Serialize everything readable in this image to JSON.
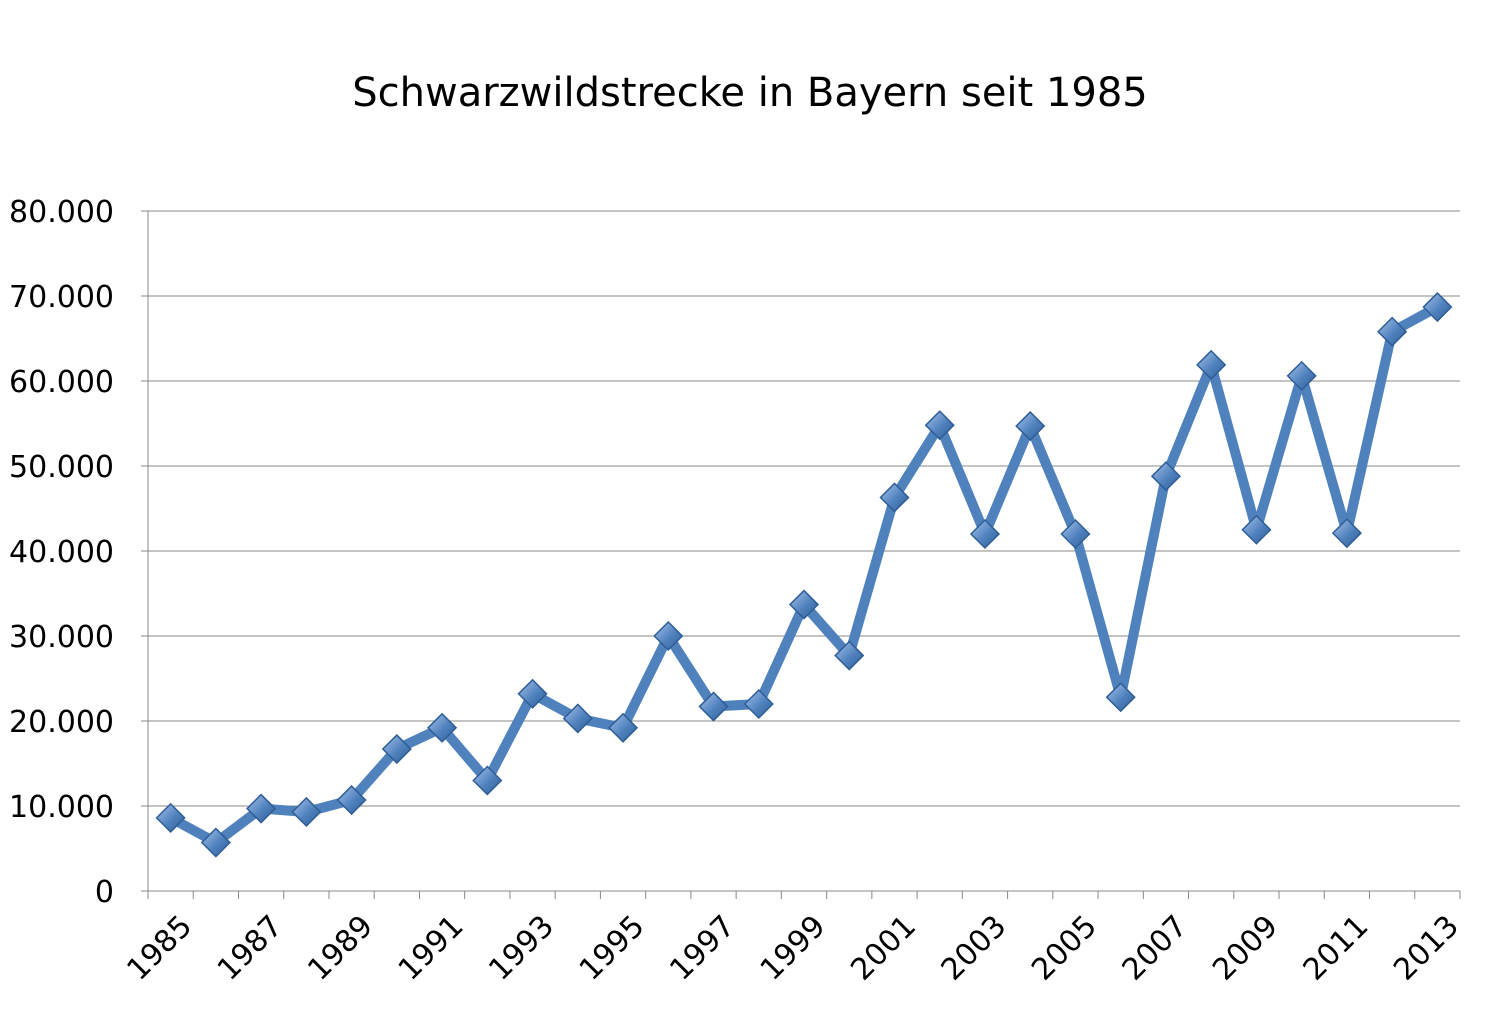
{
  "chart_data": {
    "type": "line",
    "title": "Schwarzwildstrecke in Bayern seit 1985",
    "xlabel": "",
    "ylabel": "",
    "ylim": [
      0,
      80000
    ],
    "y_ticks": [
      "0",
      "10.000",
      "20.000",
      "30.000",
      "40.000",
      "50.000",
      "60.000",
      "70.000",
      "80.000"
    ],
    "x_tick_labels": [
      "1985",
      "1987",
      "1989",
      "1991",
      "1993",
      "1995",
      "1997",
      "1999",
      "2001",
      "2003",
      "2005",
      "2007",
      "2009",
      "2011",
      "2013"
    ],
    "grid": true,
    "legend": "none",
    "colors": {
      "series": "#4F81BD",
      "marker_light": "#A9C4EB",
      "marker_dark": "#2F5E96",
      "grid": "#888888"
    },
    "series": [
      {
        "x": [
          1985,
          1986,
          1987,
          1988,
          1989,
          1990,
          1991,
          1992,
          1993,
          1994,
          1995,
          1996,
          1997,
          1998,
          1999,
          2000,
          2001,
          2002,
          2003,
          2004,
          2005,
          2006,
          2007,
          2008,
          2009,
          2010,
          2011,
          2012,
          2013
        ],
        "values": [
          8600,
          5700,
          9700,
          9300,
          10700,
          16700,
          19200,
          13000,
          23200,
          20300,
          19200,
          30000,
          21700,
          22000,
          33700,
          27700,
          46300,
          54800,
          42000,
          54700,
          42000,
          22800,
          48800,
          61900,
          42500,
          60600,
          42100,
          65800,
          68700
        ]
      }
    ]
  }
}
